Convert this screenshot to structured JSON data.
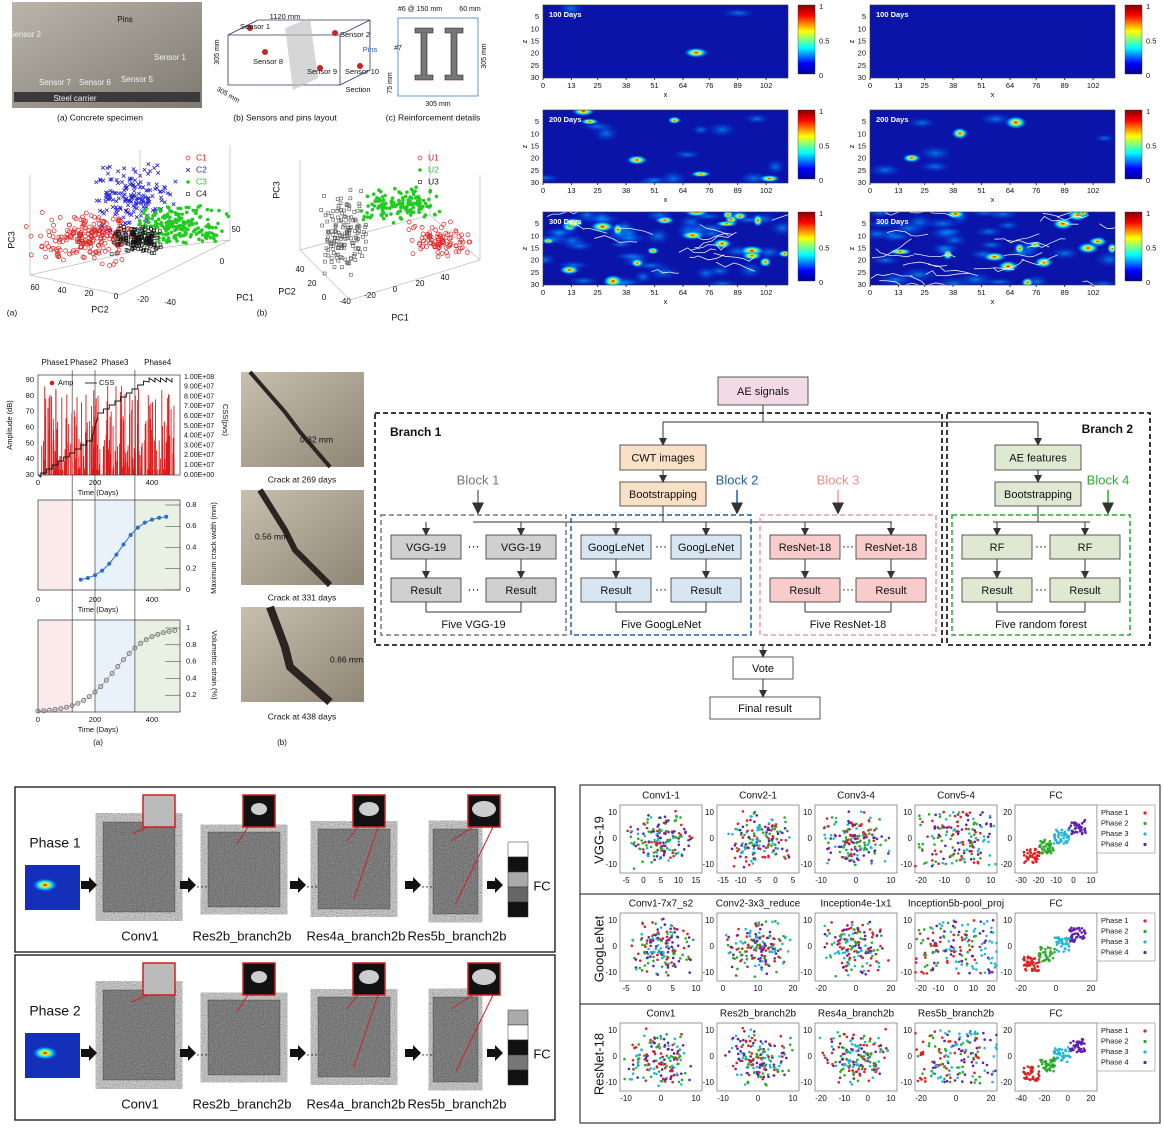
{
  "specimen": {
    "labels": [
      "Sensor 2",
      "Pins",
      "Sensor 1",
      "Sensor 7",
      "Sensor 6",
      "Sensor 5",
      "Steel carrier"
    ],
    "caption": "(a) Concrete specimen"
  },
  "sensor_layout": {
    "labels": [
      "1120 mm",
      "Sensor 1",
      "Sensor 2",
      "305 mm",
      "Sensor 8",
      "Pins",
      "Sensor 9",
      "Sensor 10",
      "Section",
      "305 mm"
    ],
    "caption": "(b) Sensors and pins layout"
  },
  "reinforcement": {
    "labels": [
      "#6 @ 150 mm",
      "60 mm",
      "#7",
      "305 mm",
      "75 mm",
      "305 mm"
    ],
    "caption": "(c) Reinforcement details"
  },
  "pca_a": {
    "legend": [
      "C1",
      "C2",
      "C3",
      "C4"
    ],
    "axis_labels": [
      "PC3",
      "PC2",
      "PC1"
    ],
    "pc2_ticks": [
      60,
      40,
      20,
      0,
      -20,
      -40
    ],
    "pc1_ticks": [
      50,
      0
    ],
    "caption": "(a)"
  },
  "pca_b": {
    "legend": [
      "U1",
      "U2",
      "U3"
    ],
    "axis_labels": [
      "PC3",
      "PC2",
      "PC1"
    ],
    "pc2_ticks": [
      40,
      20,
      0
    ],
    "pc1_ticks": [
      -40,
      -20,
      0,
      20,
      40
    ],
    "caption": "(b)"
  },
  "heatmaps": {
    "titles": [
      "100 Days",
      "200 Days",
      "300 Days"
    ],
    "x_label": "x",
    "z_label": "z",
    "x_ticks": [
      0,
      13,
      25,
      38,
      51,
      64,
      76,
      89,
      102
    ],
    "z_ticks": [
      5,
      10,
      15,
      20,
      25,
      30
    ],
    "colorbar_ticks": [
      1,
      0.5,
      0
    ]
  },
  "monitoring": {
    "phases": [
      "Phase1",
      "Phase2",
      "Phase3",
      "Phase4"
    ],
    "legend": [
      "Amp",
      "CSS"
    ],
    "amp_label": "Amplitude (dB)",
    "amp_ticks": [
      90,
      80,
      70,
      60,
      50,
      40,
      30
    ],
    "css_label": "CSS(pvs)",
    "css_ticks": [
      "1.00E+08",
      "9.00E+07",
      "8.00E+07",
      "7.00E+07",
      "6.00E+07",
      "5.00E+07",
      "4.00E+07",
      "3.00E+07",
      "2.00E+07",
      "1.00E+07",
      "0.00E+00"
    ],
    "time_label": "Time (Days)",
    "time_ticks": [
      0,
      200,
      400
    ],
    "crack_label": "Maximum crack width (mm)",
    "crack_ticks": [
      0.8,
      0.6,
      0.4,
      0.2,
      0
    ],
    "strain_label": "Volumetric strain (%)",
    "strain_ticks": [
      1,
      0.8,
      0.6,
      0.4,
      0.2
    ],
    "caption": "(a)"
  },
  "cracks": {
    "items": [
      {
        "width": "0.32 mm",
        "caption": "Crack at 269 days"
      },
      {
        "width": "0.56 mm",
        "caption": "Crack at 331 days"
      },
      {
        "width": "0.66 mm",
        "caption": "Crack at 438 days"
      }
    ],
    "caption": "(b)"
  },
  "flowchart": {
    "input": "AE signals",
    "branch1": "Branch 1",
    "branch2": "Branch 2",
    "cwt": "CWT images",
    "bootstrap1": "Bootstrapping",
    "features": "AE features",
    "bootstrap2": "Bootstrapping",
    "blocks": [
      {
        "label": "Block 1",
        "model": [
          "VGG-19",
          "VGG-19"
        ],
        "result": [
          "Result",
          "Result"
        ],
        "summary": "Five VGG-19"
      },
      {
        "label": "Block 2",
        "model": [
          "GoogLeNet",
          "GoogLeNet"
        ],
        "result": [
          "Result",
          "Result"
        ],
        "summary": "Five GoogLeNet"
      },
      {
        "label": "Block 3",
        "model": [
          "ResNet-18",
          "ResNet-18"
        ],
        "result": [
          "Result",
          "Result"
        ],
        "summary": "Five ResNet-18"
      },
      {
        "label": "Block 4",
        "model": [
          "RF",
          "RF"
        ],
        "result": [
          "Result",
          "Result"
        ],
        "summary": "Five random forest"
      }
    ],
    "vote": "Vote",
    "output": "Final result"
  },
  "feature_maps": {
    "rows": [
      {
        "phase": "Phase 1",
        "layers": [
          "Conv1",
          "Res2b_branch2b",
          "Res4a_branch2b",
          "Res5b_branch2b"
        ],
        "output": "FC"
      },
      {
        "phase": "Phase 2",
        "layers": [
          "Conv1",
          "Res2b_branch2b",
          "Res4a_branch2b",
          "Res5b_branch2b"
        ],
        "output": "FC"
      }
    ]
  },
  "tsne": {
    "legend": [
      "Phase 1",
      "Phase 2",
      "Phase 3",
      "Phase 4"
    ],
    "rows": [
      {
        "network": "VGG-19",
        "layers": [
          "Conv1-1",
          "Conv2-1",
          "Conv3-4",
          "Conv5-4",
          "FC"
        ],
        "x_ticks": [
          [
            -5,
            0,
            5,
            10,
            15
          ],
          [
            -15,
            -10,
            -5,
            0,
            5
          ],
          [
            -10,
            0,
            10
          ],
          [
            -20,
            -10,
            0,
            10
          ],
          [
            -30,
            -20,
            -10,
            0,
            10
          ]
        ],
        "y_ticks": [
          [
            10,
            0,
            -10
          ],
          [
            10,
            0,
            -10
          ],
          [
            10,
            0,
            -10
          ],
          [
            10,
            0,
            -10
          ],
          [
            20,
            0,
            -20
          ]
        ]
      },
      {
        "network": "GoogLeNet",
        "layers": [
          "Conv1-7x7_s2",
          "Conv2-3x3_reduce",
          "Inception4e-1x1",
          "Inception5b-pool_proj",
          "FC"
        ],
        "x_ticks": [
          [
            -5,
            0,
            5,
            10
          ],
          [
            0,
            10,
            20
          ],
          [
            -20,
            0,
            20
          ],
          [
            -20,
            -10,
            0,
            10,
            20
          ],
          [
            -20,
            0,
            20
          ]
        ],
        "y_ticks": [
          [
            10,
            0,
            -10
          ],
          [
            10,
            0,
            -10
          ],
          [
            10,
            0,
            -10
          ],
          [
            10,
            0,
            -10
          ],
          [
            10,
            0,
            -10
          ]
        ]
      },
      {
        "network": "ResNet-18",
        "layers": [
          "Conv1",
          "Res2b_branch2b",
          "Res4a_branch2b",
          "Res5b_branch2b",
          "FC"
        ],
        "x_ticks": [
          [
            -10,
            0,
            10
          ],
          [
            -10,
            0,
            10
          ],
          [
            -20,
            -10,
            0,
            10
          ],
          [
            -20,
            0,
            20
          ],
          [
            -40,
            -20,
            0,
            20
          ]
        ],
        "y_ticks": [
          [
            10,
            0,
            -10
          ],
          [
            10,
            0,
            -10
          ],
          [
            10,
            0,
            -10
          ],
          [
            10,
            0,
            -10
          ],
          [
            20,
            0,
            -20
          ]
        ]
      }
    ]
  }
}
